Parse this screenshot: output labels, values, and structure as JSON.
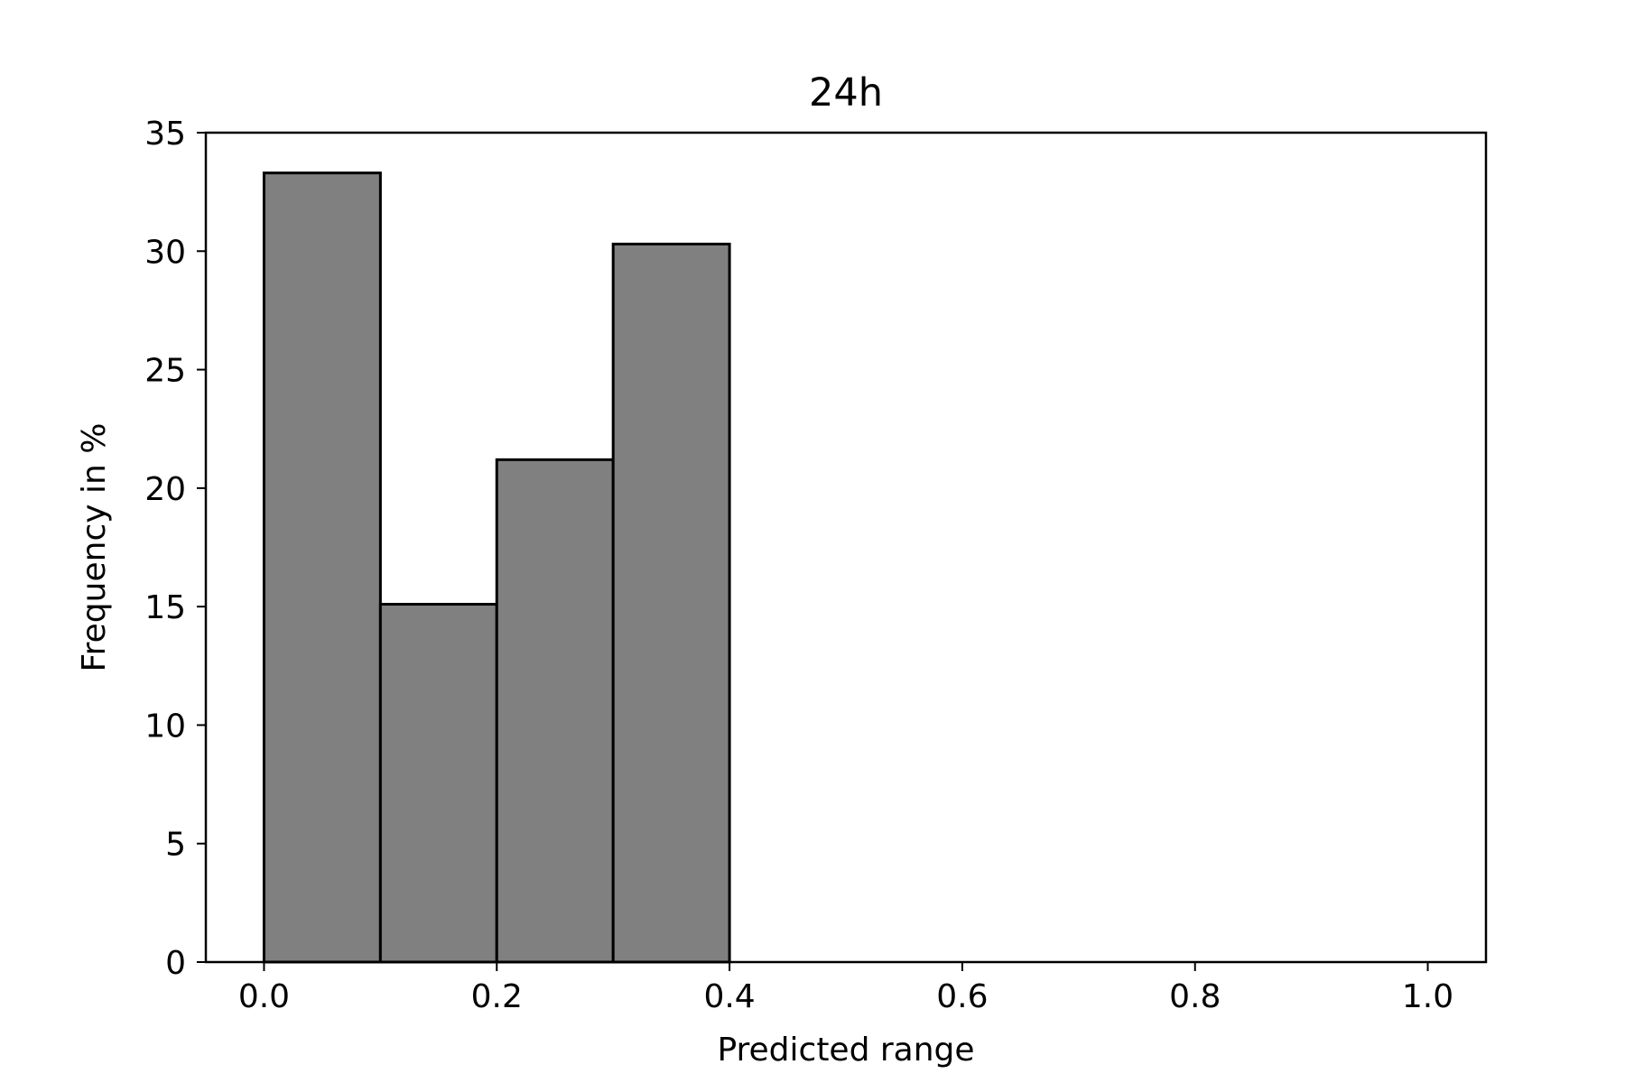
{
  "chart_data": {
    "type": "bar",
    "title": "24h",
    "xlabel": "Predicted range",
    "ylabel": "Frequency in %",
    "bins": [
      {
        "x0": 0.0,
        "x1": 0.1,
        "value": 33.3
      },
      {
        "x0": 0.1,
        "x1": 0.2,
        "value": 15.1
      },
      {
        "x0": 0.2,
        "x1": 0.3,
        "value": 21.2
      },
      {
        "x0": 0.3,
        "x1": 0.4,
        "value": 30.3
      },
      {
        "x0": 0.4,
        "x1": 0.5,
        "value": 0
      },
      {
        "x0": 0.5,
        "x1": 0.6,
        "value": 0
      },
      {
        "x0": 0.6,
        "x1": 0.7,
        "value": 0
      },
      {
        "x0": 0.7,
        "x1": 0.8,
        "value": 0
      },
      {
        "x0": 0.8,
        "x1": 0.9,
        "value": 0
      },
      {
        "x0": 0.9,
        "x1": 1.0,
        "value": 0
      }
    ],
    "xlim": [
      -0.05,
      1.05
    ],
    "ylim": [
      0,
      35
    ],
    "xticks": [
      "0.0",
      "0.2",
      "0.4",
      "0.6",
      "0.8",
      "1.0"
    ],
    "yticks": [
      "0",
      "5",
      "10",
      "15",
      "20",
      "25",
      "30",
      "35"
    ],
    "grid": false,
    "bar_color": "#808080",
    "edge_color": "#000000"
  }
}
